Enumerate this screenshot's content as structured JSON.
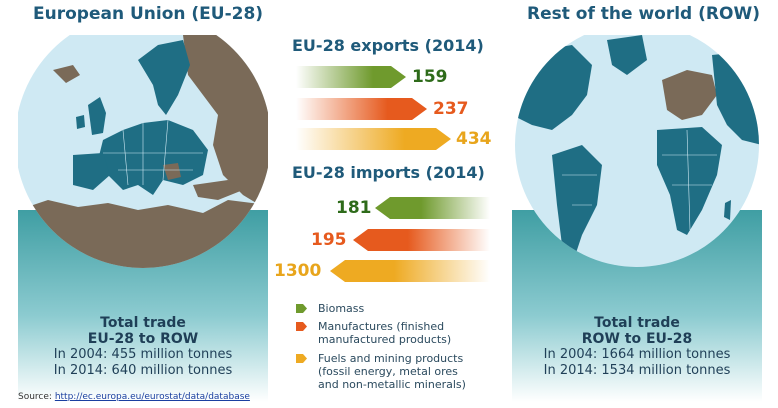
{
  "left": {
    "title": "European Union (EU-28)",
    "trade_head_1": "Total trade",
    "trade_head_2": "EU-28 to ROW",
    "line_2004": "In 2004: 455 million tonnes",
    "line_2014": "In 2014: 640 million tonnes"
  },
  "right": {
    "title": "Rest of the world (ROW)",
    "trade_head_1": "Total trade",
    "trade_head_2": "ROW to EU-28",
    "line_2004": "In 2004: 1664 million tonnes",
    "line_2014": "In 2014: 1534 million tonnes"
  },
  "exports": {
    "title": "EU-28 exports (2014)",
    "biomass": "159",
    "manufactures": "237",
    "fuels": "434"
  },
  "imports": {
    "title": "EU-28 imports (2014)",
    "biomass": "181",
    "manufactures": "195",
    "fuels": "1300"
  },
  "legend": {
    "biomass": "Biomass",
    "manufactures": "Manufactures (finished manufactured products)",
    "fuels": "Fuels and mining products (fossil energy, metal ores and non-metallic minerals)"
  },
  "source": {
    "label": "Source:",
    "link": "http://ec.europa.eu/eurostat/data/database"
  },
  "colors": {
    "biomass": "#6f9a2d",
    "manufactures": "#e65a1e",
    "fuels": "#eeaa22",
    "heading": "#1f5a7a",
    "land_eu_view": "#7a6a58",
    "land_row_view": "#1f6e84",
    "ocean": "#cfe9f3",
    "teal_band": "#4aa9ad"
  }
}
